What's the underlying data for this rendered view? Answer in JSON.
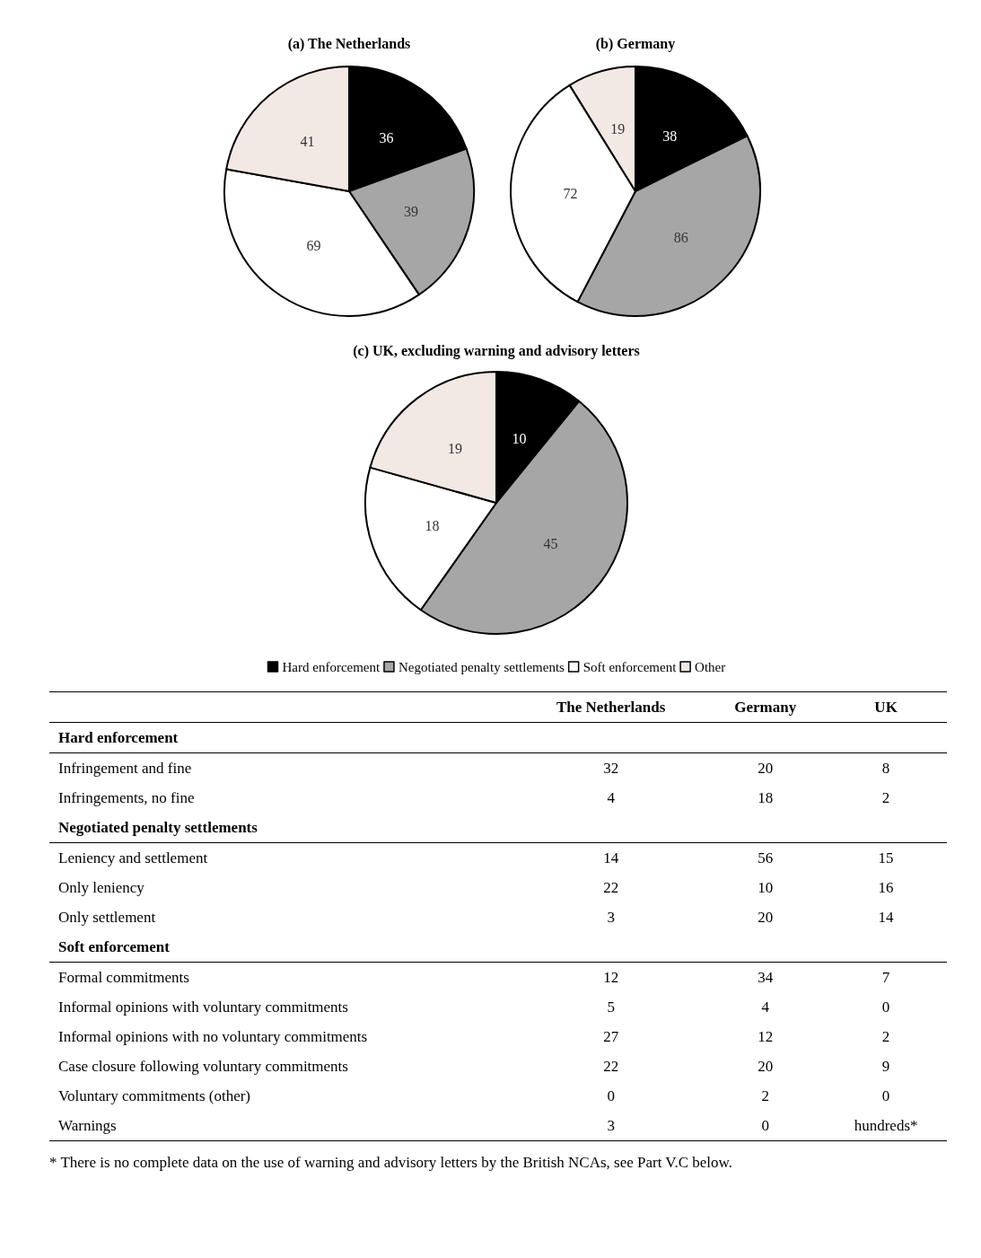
{
  "chart_data": [
    {
      "type": "pie",
      "title": "(a) The Netherlands",
      "categories": [
        null,
        null,
        null,
        null
      ],
      "values": [
        36,
        39,
        69,
        41
      ],
      "colors": [
        "#000000",
        "#a6a6a6",
        "#ffffff",
        "#f3e9e4"
      ],
      "data_labels": true,
      "legend": false
    },
    {
      "type": "pie",
      "title": "(b) Germany",
      "categories": [
        null,
        null,
        null,
        null
      ],
      "values": [
        38,
        86,
        72,
        19
      ],
      "colors": [
        "#000000",
        "#a6a6a6",
        "#ffffff",
        "#f3e9e4"
      ],
      "data_labels": true,
      "legend": false
    },
    {
      "type": "pie",
      "title": "(c) UK, excluding warning and advisory letters",
      "categories": [
        "Hard enforcement",
        "Negotiated penalty settlements",
        "Soft enforcement",
        "Other"
      ],
      "values": [
        10,
        45,
        18,
        19
      ],
      "colors": [
        "#000000",
        "#a6a6a6",
        "#ffffff",
        "#f3e9e4"
      ],
      "data_labels": true,
      "legend": "bottom"
    },
    {
      "type": "other",
      "categories": [
        "Hard enforcement",
        "Infringement and fine",
        "Infringements, no fine",
        "Negotiated penalty settlements",
        "Leniency and settlement",
        "Only leniency",
        "Only settlement",
        "Soft enforcement",
        "Formal commitments",
        "Informal opinions with voluntary commitments",
        "Informal opinions with no voluntary commitments",
        "Case closure following voluntary commitments",
        "Voluntary commitments (other)",
        "Warnings"
      ],
      "series": [
        {
          "name": "The Netherlands",
          "values": [
            null,
            32,
            4,
            null,
            14,
            22,
            3,
            null,
            12,
            5,
            27,
            22,
            0,
            3
          ]
        },
        {
          "name": "Germany",
          "values": [
            null,
            20,
            18,
            null,
            56,
            10,
            20,
            null,
            34,
            4,
            12,
            20,
            2,
            0
          ]
        },
        {
          "name": "UK",
          "values": [
            null,
            8,
            2,
            null,
            15,
            16,
            14,
            null,
            7,
            0,
            2,
            9,
            0,
            null
          ]
        }
      ],
      "data_labels": true,
      "annotations": [
        {
          "text": "hundreds*",
          "x": "UK",
          "y": "Warnings"
        },
        "* There is no complete data on the use of warning and advisory letters by the British NCAs, see Part V.C below."
      ]
    }
  ]
}
